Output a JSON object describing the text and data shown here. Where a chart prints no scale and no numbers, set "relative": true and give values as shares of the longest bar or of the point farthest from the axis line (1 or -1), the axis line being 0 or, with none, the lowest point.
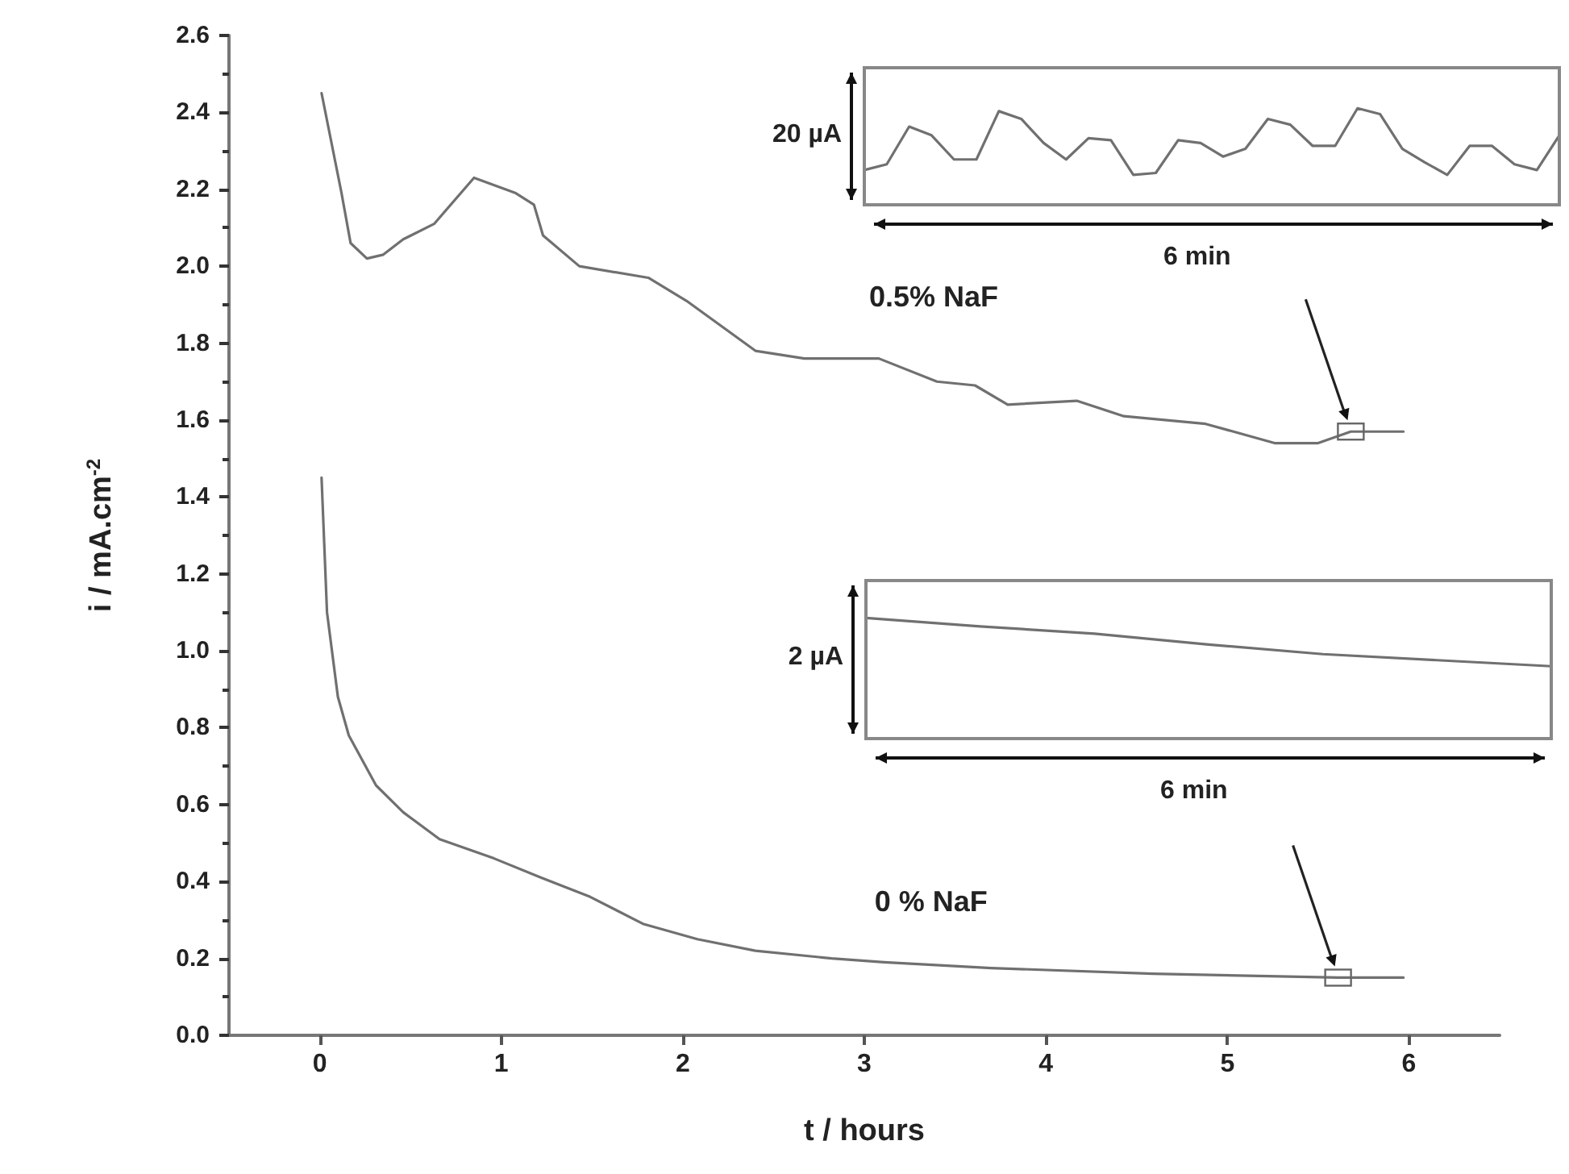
{
  "chart_data": [
    {
      "type": "line",
      "xlabel": "t / hours",
      "ylabel": "i / mA.cm$^{-2}$",
      "xlim": [
        -0.5,
        6.5
      ],
      "xticks": [
        0,
        1,
        2,
        3,
        4,
        5,
        6
      ],
      "ylim": [
        0,
        2.6
      ],
      "yticks": [
        {
          "value": 0,
          "label": "0.0"
        },
        0.2,
        0.4,
        0.6,
        0.8,
        {
          "value": 1,
          "label": "1.0"
        },
        1.2,
        1.4,
        1.6,
        1.8,
        {
          "value": 2,
          "label": "2.0"
        },
        2.2,
        2.4,
        2.6
      ],
      "grid": false,
      "legend": false,
      "marker": "none",
      "line_style": "solid",
      "series": [
        {
          "name": "0.5% NaF",
          "color": "#707070",
          "x": [
            0.01,
            0.12,
            0.17,
            0.26,
            0.35,
            0.46,
            0.63,
            0.85,
            1.08,
            1.18,
            1.23,
            1.43,
            1.81,
            2.02,
            2.4,
            2.67,
            3.08,
            3.4,
            3.61,
            3.79,
            4.17,
            4.43,
            4.88,
            5.26,
            5.5,
            5.68,
            5.97
          ],
          "values": [
            2.45,
            2.19,
            2.06,
            2.02,
            2.03,
            2.07,
            2.11,
            2.23,
            2.19,
            2.16,
            2.08,
            2.0,
            1.97,
            1.91,
            1.78,
            1.76,
            1.76,
            1.7,
            1.69,
            1.64,
            1.65,
            1.61,
            1.59,
            1.54,
            1.54,
            1.57,
            1.57
          ]
        },
        {
          "name": "0 % NaF",
          "color": "#707070",
          "x": [
            0.01,
            0.04,
            0.1,
            0.16,
            0.31,
            0.46,
            0.66,
            0.96,
            1.22,
            1.49,
            1.78,
            2.08,
            2.4,
            2.82,
            3.11,
            3.7,
            4.59,
            5.61,
            5.97
          ],
          "values": [
            1.45,
            1.1,
            0.88,
            0.78,
            0.65,
            0.58,
            0.51,
            0.46,
            0.41,
            0.36,
            0.29,
            0.25,
            0.22,
            0.2,
            0.19,
            0.175,
            0.16,
            0.15,
            0.15
          ]
        }
      ]
    },
    {
      "type": "line",
      "relative": true,
      "grid": false,
      "marker": "none",
      "color": "#707070",
      "annotations": [
        "20 µA",
        "6 min"
      ],
      "categories": [
        null,
        null,
        null,
        null,
        null,
        null,
        null,
        null,
        null,
        null,
        null,
        null,
        null,
        null,
        null,
        null,
        null,
        null,
        null,
        null,
        null,
        null,
        null,
        null,
        null,
        null,
        null,
        null,
        null,
        null,
        null,
        null
      ],
      "values": [
        0.36,
        0.42,
        0.81,
        0.72,
        0.47,
        0.47,
        0.97,
        0.89,
        0.64,
        0.47,
        0.69,
        0.67,
        0.31,
        0.33,
        0.67,
        0.64,
        0.5,
        0.58,
        0.89,
        0.83,
        0.61,
        0.61,
        1,
        0.94,
        0.58,
        0.44,
        0.31,
        0.61,
        0.61,
        0.42,
        0.36,
        0.72
      ]
    },
    {
      "type": "line",
      "relative": true,
      "grid": false,
      "marker": "none",
      "color": "#707070",
      "annotations": [
        "2 µA",
        "6 min"
      ],
      "categories": [
        null,
        null,
        null,
        null,
        null,
        null,
        null
      ],
      "values": [
        1,
        0.93,
        0.87,
        0.78,
        0.7,
        0.65,
        0.6
      ]
    }
  ]
}
